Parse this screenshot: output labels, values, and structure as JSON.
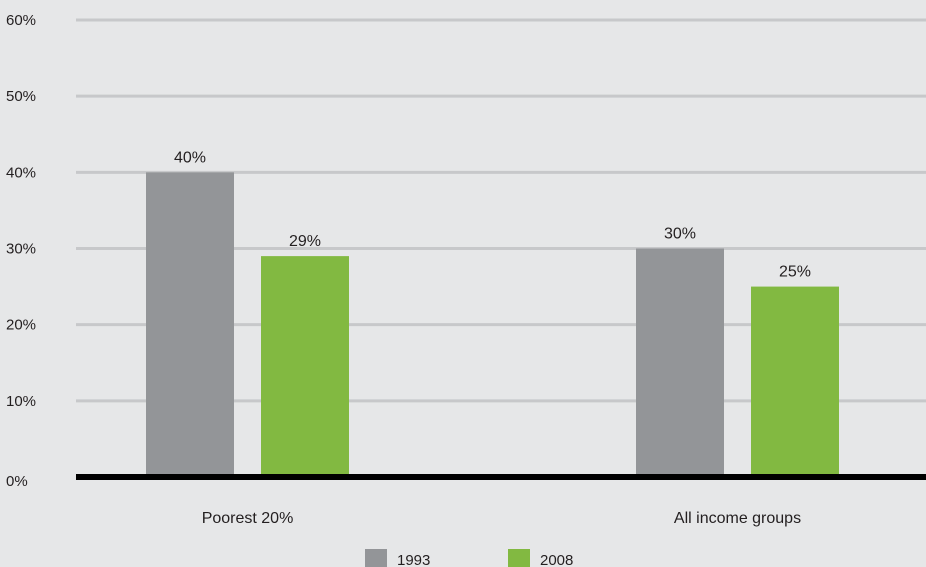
{
  "chart_data": {
    "type": "bar",
    "categories": [
      "Poorest 20%",
      "All income groups"
    ],
    "series": [
      {
        "name": "1993",
        "values": [
          40,
          30
        ],
        "labels": [
          "40%",
          "30%"
        ],
        "color": "#939598"
      },
      {
        "name": "2008",
        "values": [
          29,
          25
        ],
        "labels": [
          "29%",
          "25%"
        ],
        "color": "#82b941"
      }
    ],
    "y_ticks": [
      "0%",
      "10%",
      "20%",
      "30%",
      "40%",
      "50%",
      "60%"
    ],
    "ylim": [
      0,
      60
    ],
    "grid": true,
    "legend_position": "bottom-center",
    "colors": {
      "background": "#e6e7e8",
      "gridline": "#c7c8ca",
      "axis": "#000000"
    }
  }
}
